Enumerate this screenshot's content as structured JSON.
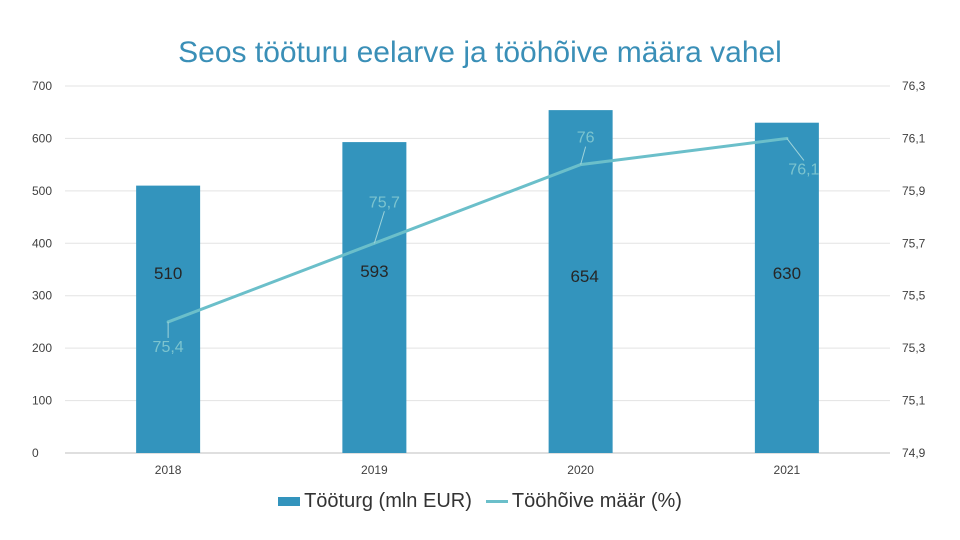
{
  "chart_data": {
    "type": "bar",
    "title": "Seos tööturu eelarve ja tööhõive määra vahel",
    "categories": [
      "2018",
      "2019",
      "2020",
      "2021"
    ],
    "series": [
      {
        "name": "Tööturg (mln EUR)",
        "type": "bar",
        "axis": "left",
        "values": [
          510,
          593,
          654,
          630
        ],
        "color": "#3394bd"
      },
      {
        "name": "Tööhõive määr (%)",
        "type": "line",
        "axis": "right",
        "values": [
          75.4,
          75.7,
          76,
          76.1
        ],
        "color": "#6bbfca"
      }
    ],
    "bar_labels": [
      "510",
      "593",
      "654",
      "630"
    ],
    "line_labels": [
      "75,4",
      "75,7",
      "76",
      "76,1"
    ],
    "y_left": {
      "min": 0,
      "max": 700,
      "ticks": [
        "0",
        "100",
        "200",
        "300",
        "400",
        "500",
        "600",
        "700"
      ]
    },
    "y_right": {
      "min": 74.9,
      "max": 76.3,
      "ticks": [
        "74,9",
        "75,1",
        "75,3",
        "75,5",
        "75,7",
        "75,9",
        "76,1",
        "76,3"
      ]
    },
    "grid": true,
    "legend": "bottom"
  }
}
